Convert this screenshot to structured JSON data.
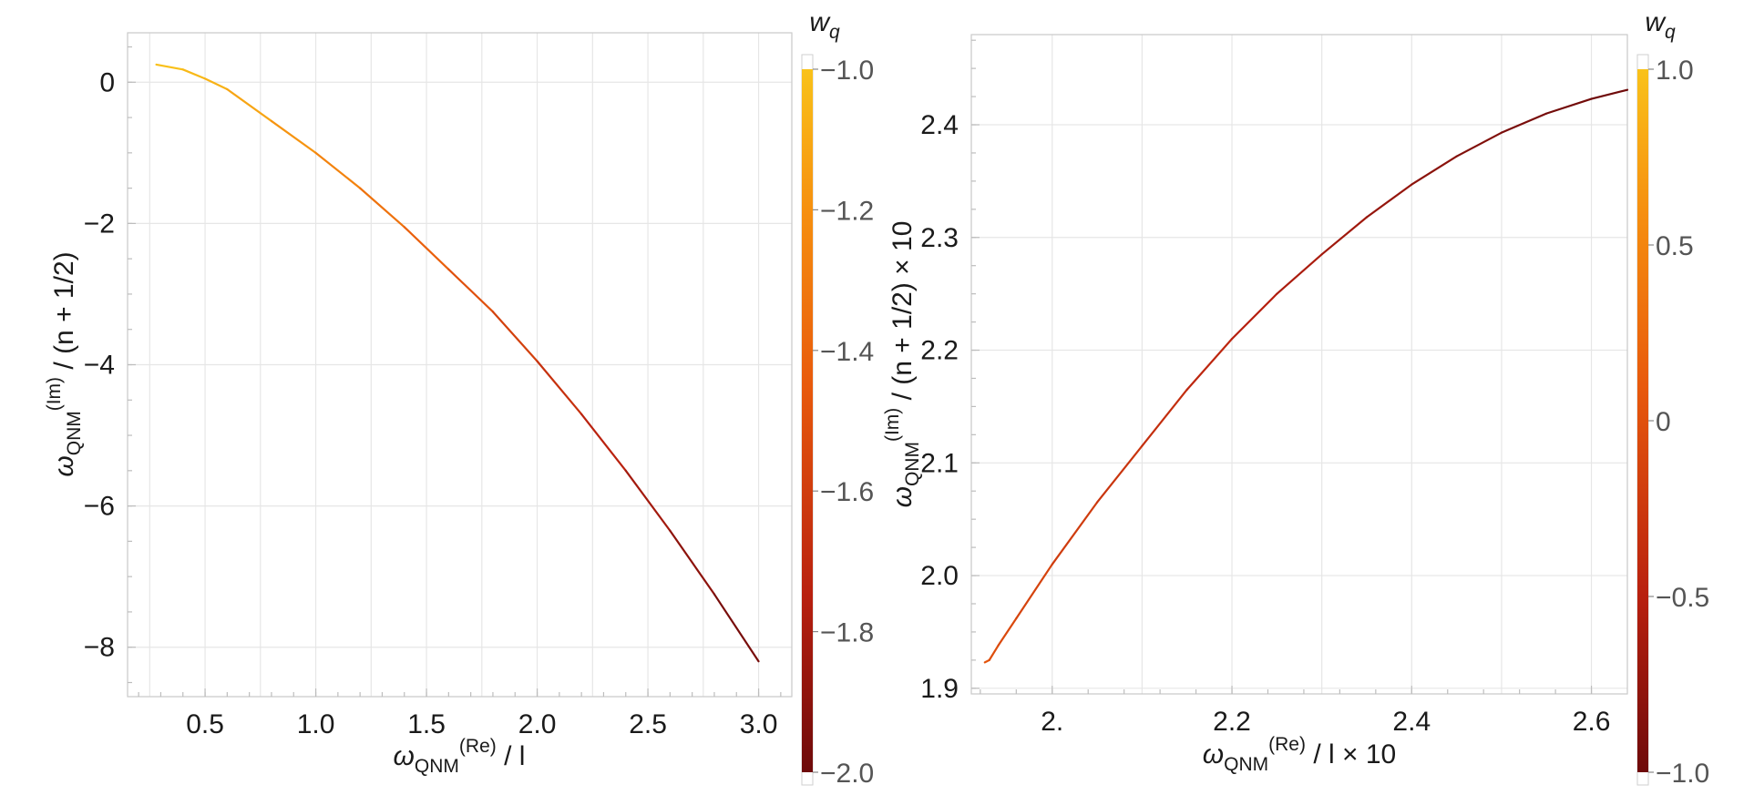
{
  "chart_data": [
    {
      "type": "line",
      "colorbar": {
        "title": "w_q",
        "range": [
          -2.0,
          -1.0
        ],
        "ticks": [
          -1.0,
          -1.2,
          -1.4,
          -1.6,
          -1.8,
          -2.0
        ],
        "tick_labels": [
          "−1.0",
          "−1.2",
          "−1.4",
          "−1.6",
          "−1.8",
          "−2.0"
        ]
      },
      "xlim": [
        0.15,
        3.15
      ],
      "ylim": [
        -8.7,
        0.7
      ],
      "xticks": [
        0.5,
        1.0,
        1.5,
        2.0,
        2.5,
        3.0
      ],
      "xtick_labels": [
        "0.5",
        "1.0",
        "1.5",
        "2.0",
        "2.5",
        "3.0"
      ],
      "yticks": [
        0,
        -2,
        -4,
        -6,
        -8
      ],
      "ytick_labels": [
        "0",
        "−2",
        "−4",
        "−6",
        "−8"
      ],
      "grid": true,
      "xlabel": {
        "base": "ω",
        "sub": "QNM",
        "sup": "(Re)",
        "rest": " / l"
      },
      "ylabel": {
        "base": "ω",
        "sub": "QNM",
        "sup": "(Im)",
        "rest": " / (n + 1/2)"
      },
      "series": [
        {
          "x": [
            0.28,
            0.4,
            0.5,
            0.6,
            0.8,
            1.0,
            1.2,
            1.4,
            1.6,
            1.8,
            2.0,
            2.2,
            2.4,
            2.6,
            2.8,
            3.0
          ],
          "y": [
            0.25,
            0.18,
            0.05,
            -0.1,
            -0.55,
            -1.0,
            -1.5,
            -2.05,
            -2.65,
            -3.25,
            -3.95,
            -4.7,
            -5.5,
            -6.35,
            -7.25,
            -8.2
          ],
          "wq": [
            -1.0,
            -1.02,
            -1.05,
            -1.08,
            -1.15,
            -1.22,
            -1.3,
            -1.38,
            -1.46,
            -1.54,
            -1.62,
            -1.7,
            -1.78,
            -1.86,
            -1.93,
            -2.0
          ]
        }
      ]
    },
    {
      "type": "line",
      "colorbar": {
        "title": "w_q",
        "range": [
          -1.0,
          1.0
        ],
        "ticks": [
          1.0,
          0.5,
          0,
          -0.5,
          -1.0
        ],
        "tick_labels": [
          "1.0",
          "0.5",
          "0",
          "−0.5",
          "−1.0"
        ]
      },
      "xlim": [
        1.91,
        2.64
      ],
      "ylim": [
        1.895,
        2.48
      ],
      "xticks": [
        2.0,
        2.2,
        2.4,
        2.6
      ],
      "xtick_labels": [
        "2.",
        "2.2",
        "2.4",
        "2.6"
      ],
      "yticks": [
        1.9,
        2.0,
        2.1,
        2.2,
        2.3,
        2.4
      ],
      "ytick_labels": [
        "1.9",
        "2.0",
        "2.1",
        "2.2",
        "2.3",
        "2.4"
      ],
      "grid": true,
      "xlabel": {
        "base": "ω",
        "sub": "QNM",
        "sup": "(Re)",
        "rest": " / l × 10"
      },
      "ylabel": {
        "base": "ω",
        "sub": "QNM",
        "sup": "(Im)",
        "rest": " / (n + 1/2) × 10"
      },
      "series": [
        {
          "x": [
            1.925,
            1.93,
            1.94,
            1.96,
            2.0,
            2.05,
            2.1,
            2.15,
            2.2,
            2.25,
            2.3,
            2.35,
            2.4,
            2.45,
            2.5,
            2.55,
            2.6,
            2.64
          ],
          "y": [
            1.923,
            1.925,
            1.938,
            1.962,
            2.01,
            2.065,
            2.115,
            2.165,
            2.21,
            2.25,
            2.285,
            2.318,
            2.347,
            2.372,
            2.393,
            2.41,
            2.423,
            2.431
          ],
          "wq": [
            0.1,
            0.0,
            -0.05,
            -0.1,
            -0.18,
            -0.25,
            -0.32,
            -0.4,
            -0.48,
            -0.55,
            -0.62,
            -0.7,
            -0.77,
            -0.84,
            -0.9,
            -0.95,
            -0.98,
            -1.0
          ]
        }
      ]
    }
  ]
}
